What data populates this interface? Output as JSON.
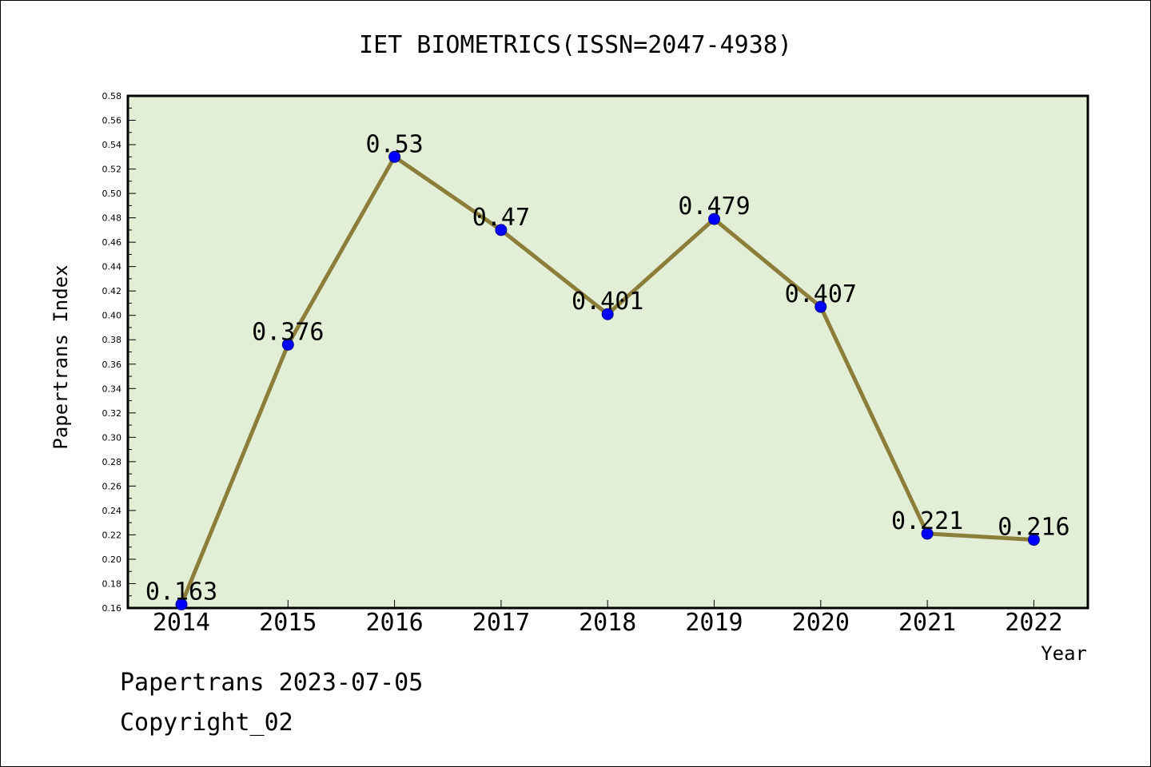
{
  "chart_data": {
    "type": "line",
    "title": "IET BIOMETRICS(ISSN=2047-4938)",
    "xlabel": "Year",
    "ylabel": "Papertrans Index",
    "categories": [
      "2014",
      "2015",
      "2016",
      "2017",
      "2018",
      "2019",
      "2020",
      "2021",
      "2022"
    ],
    "series": [
      {
        "values": [
          0.163,
          0.376,
          0.53,
          0.47,
          0.401,
          0.479,
          0.407,
          0.221,
          0.216
        ]
      }
    ],
    "data_labels": [
      "0.163",
      "0.376",
      "0.53",
      "0.47",
      "0.401",
      "0.479",
      "0.407",
      "0.221",
      "0.216"
    ],
    "ylim": [
      0.16,
      0.58
    ],
    "yticks": [
      "0.16",
      "0.18",
      "0.20",
      "0.22",
      "0.24",
      "0.26",
      "0.28",
      "0.30",
      "0.32",
      "0.34",
      "0.36",
      "0.38",
      "0.40",
      "0.42",
      "0.44",
      "0.46",
      "0.48",
      "0.50",
      "0.52",
      "0.54",
      "0.56",
      "0.58"
    ],
    "grid": false,
    "colors": {
      "plot_bg": "#e2efd6",
      "line": "#8b7d3a",
      "marker": "#0000ff"
    }
  },
  "footer": {
    "date_line": "Papertrans 2023-07-05",
    "copyright": "Copyright_02"
  }
}
